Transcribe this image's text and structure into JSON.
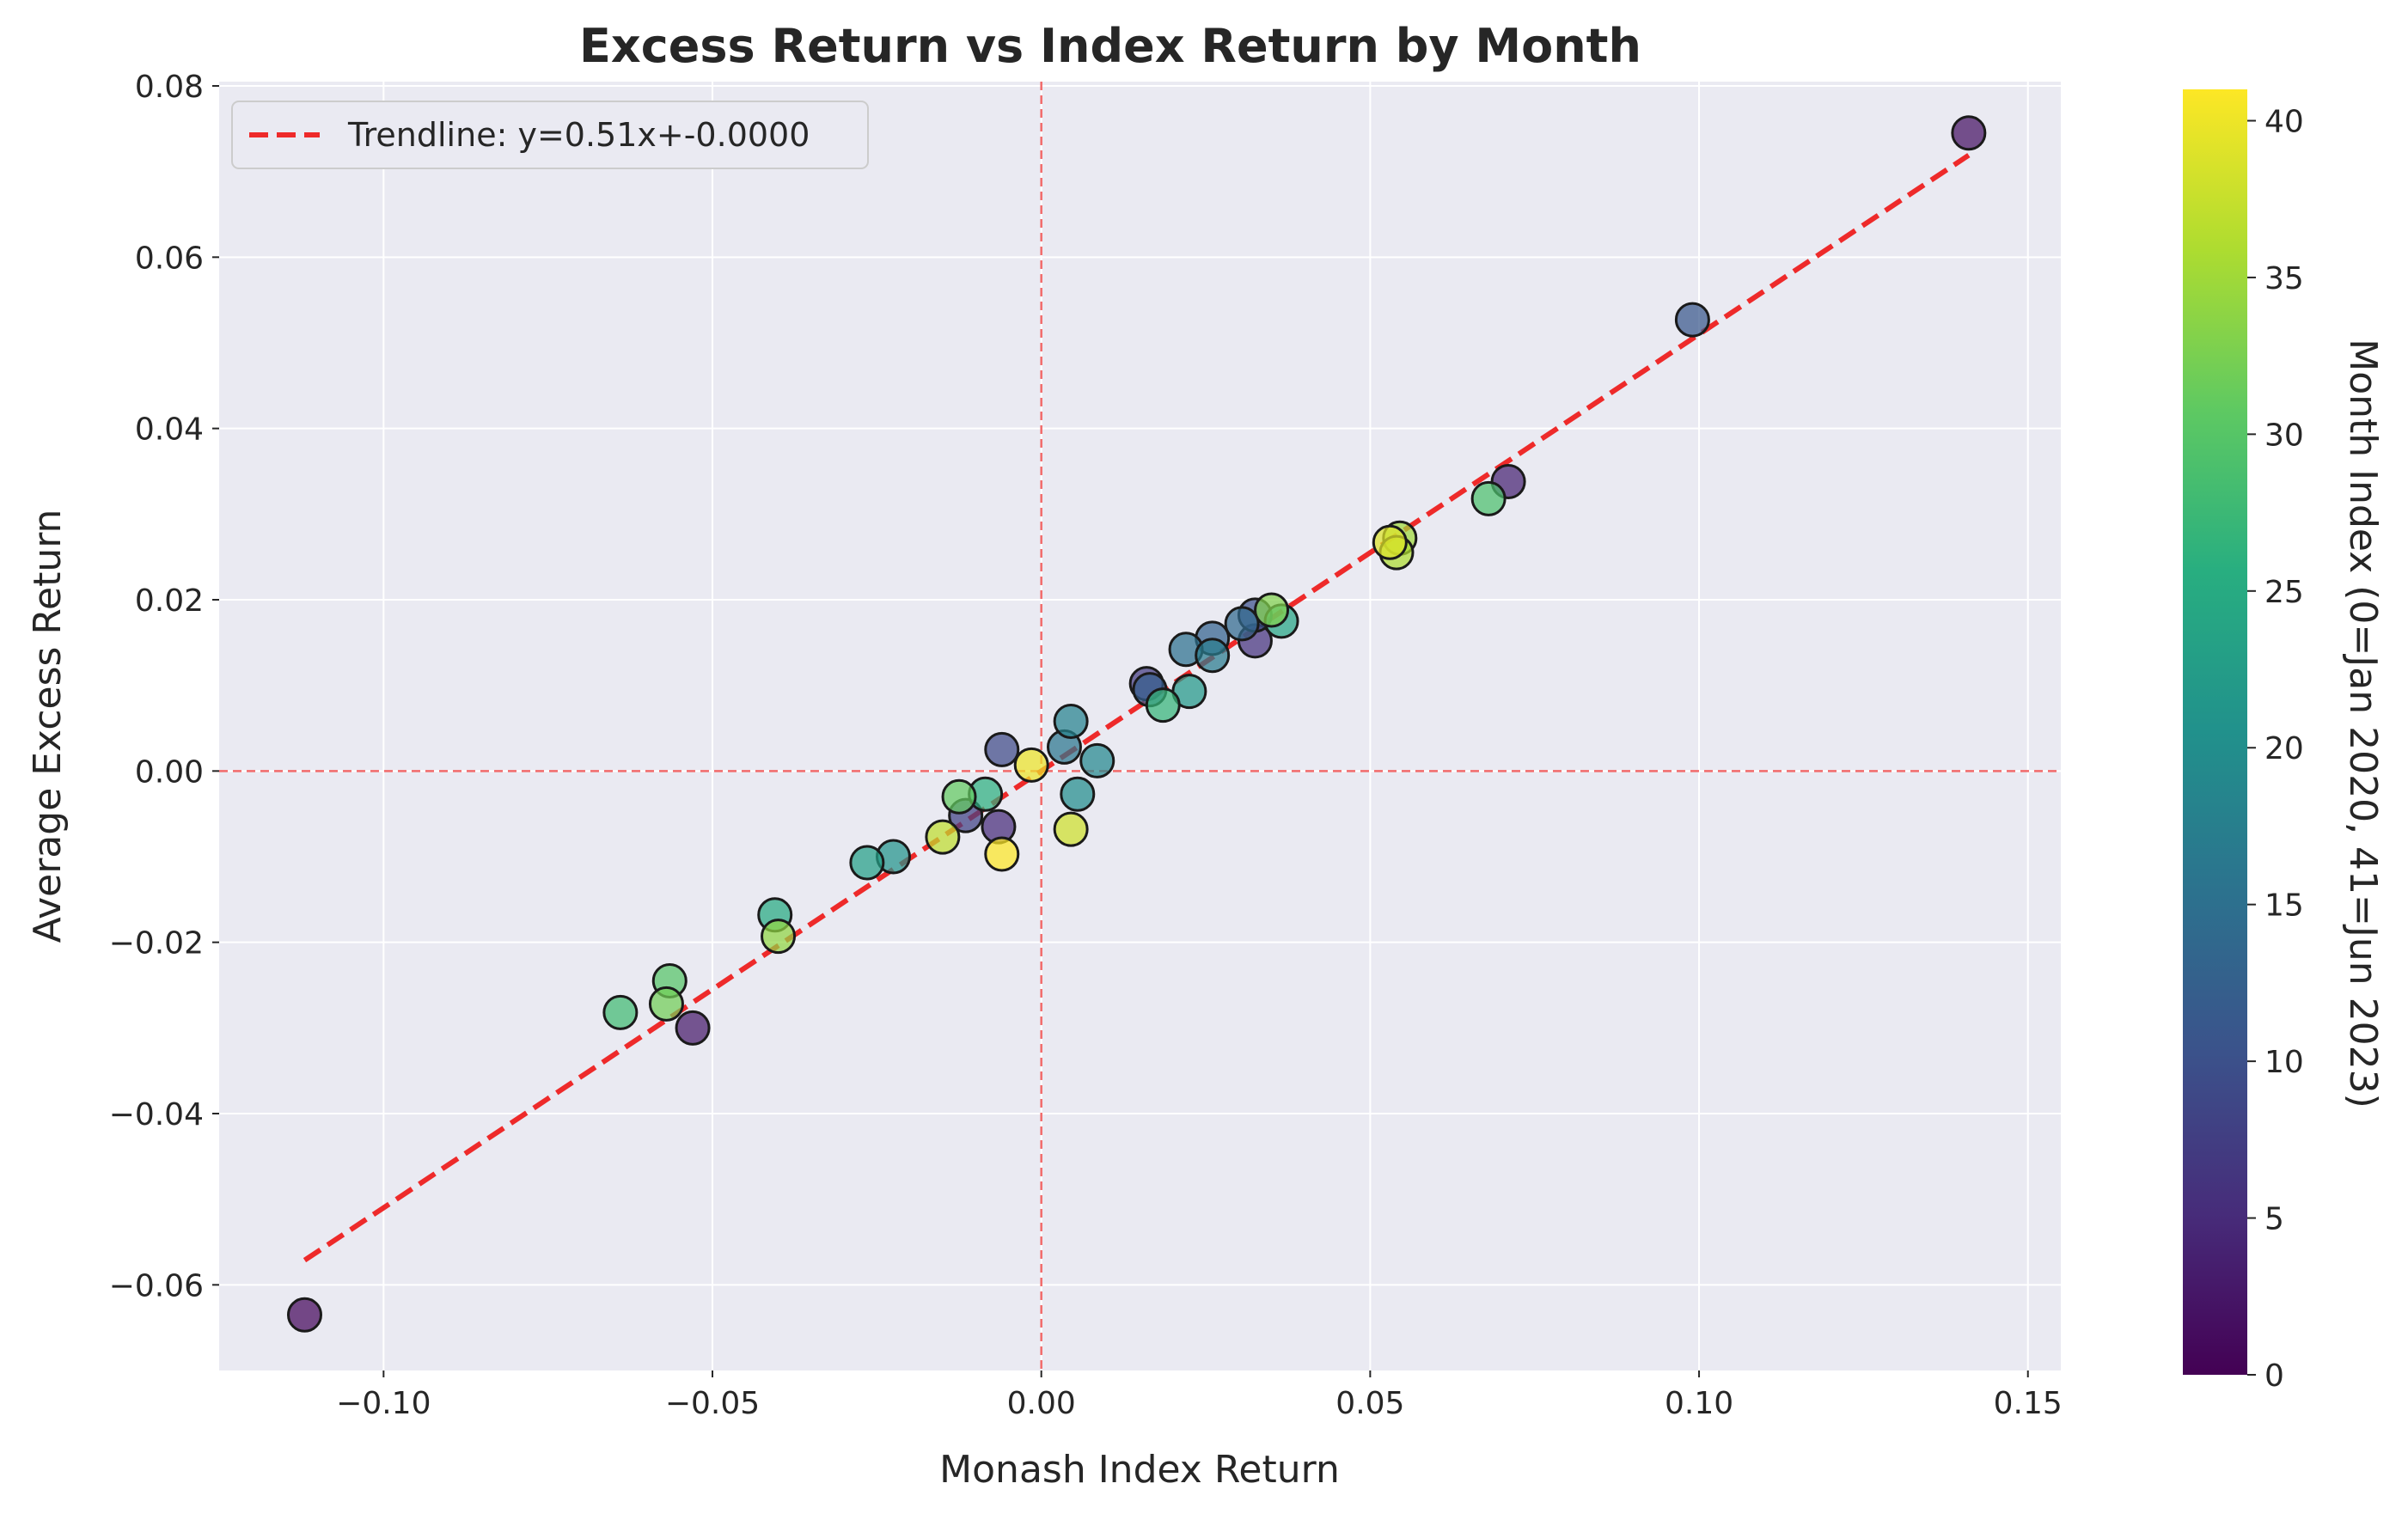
{
  "chart_data": {
    "type": "scatter",
    "title": "Excess Return vs Index Return by Month",
    "xlabel": "Monash Index Return",
    "ylabel": "Average Excess Return",
    "xlim": [
      -0.125,
      0.155
    ],
    "ylim": [
      -0.07,
      0.0805
    ],
    "grid": true,
    "legend_position": "top-left",
    "x_ticks": [
      {
        "value": -0.1,
        "label": "−0.10"
      },
      {
        "value": -0.05,
        "label": "−0.05"
      },
      {
        "value": 0.0,
        "label": "0.00"
      },
      {
        "value": 0.05,
        "label": "0.05"
      },
      {
        "value": 0.1,
        "label": "0.10"
      },
      {
        "value": 0.15,
        "label": "0.15"
      }
    ],
    "y_ticks": [
      {
        "value": -0.06,
        "label": "−0.06"
      },
      {
        "value": -0.04,
        "label": "−0.04"
      },
      {
        "value": -0.02,
        "label": "−0.02"
      },
      {
        "value": 0.0,
        "label": "0.00"
      },
      {
        "value": 0.02,
        "label": "0.02"
      },
      {
        "value": 0.04,
        "label": "0.04"
      },
      {
        "value": 0.06,
        "label": "0.06"
      },
      {
        "value": 0.08,
        "label": "0.08"
      }
    ],
    "reference_lines": {
      "x": 0,
      "y": 0,
      "color": "#f26b6b",
      "style": "dashed"
    },
    "trendline": {
      "label": "Trendline: y=0.51x+-0.0000",
      "slope": 0.51,
      "intercept": 0.0,
      "x_range": [
        -0.112,
        0.141
      ],
      "color": "#ee2a2a",
      "style": "dashed"
    },
    "colorbar": {
      "label": "Month Index (0=Jan 2020, 41=Jun 2023)",
      "range": [
        0,
        41
      ],
      "colormap": "viridis",
      "ticks": [
        {
          "value": 0,
          "label": "0"
        },
        {
          "value": 5,
          "label": "5"
        },
        {
          "value": 10,
          "label": "10"
        },
        {
          "value": 15,
          "label": "15"
        },
        {
          "value": 20,
          "label": "20"
        },
        {
          "value": 25,
          "label": "25"
        },
        {
          "value": 30,
          "label": "30"
        },
        {
          "value": 35,
          "label": "35"
        },
        {
          "value": 40,
          "label": "40"
        }
      ]
    },
    "series": [
      {
        "points": [
          {
            "x": -0.112,
            "y": -0.0635,
            "month": 1
          },
          {
            "x": 0.141,
            "y": 0.0745,
            "month": 2
          },
          {
            "x": -0.053,
            "y": -0.03,
            "month": 3
          },
          {
            "x": 0.071,
            "y": 0.0338,
            "month": 4
          },
          {
            "x": -0.0065,
            "y": -0.0065,
            "month": 5
          },
          {
            "x": 0.0325,
            "y": 0.0152,
            "month": 6
          },
          {
            "x": 0.016,
            "y": 0.0102,
            "month": 7
          },
          {
            "x": -0.0115,
            "y": -0.0052,
            "month": 8
          },
          {
            "x": -0.006,
            "y": 0.0025,
            "month": 9
          },
          {
            "x": 0.0325,
            "y": 0.0182,
            "month": 10
          },
          {
            "x": 0.099,
            "y": 0.0527,
            "month": 11
          },
          {
            "x": 0.0165,
            "y": 0.0095,
            "month": 12
          },
          {
            "x": 0.026,
            "y": 0.0155,
            "month": 13
          },
          {
            "x": 0.0305,
            "y": 0.0172,
            "month": 14
          },
          {
            "x": 0.022,
            "y": 0.0142,
            "month": 15
          },
          {
            "x": 0.0035,
            "y": 0.0028,
            "month": 16
          },
          {
            "x": 0.026,
            "y": 0.0135,
            "month": 17
          },
          {
            "x": 0.0045,
            "y": 0.0058,
            "month": 18
          },
          {
            "x": 0.0085,
            "y": 0.0012,
            "month": 19
          },
          {
            "x": 0.0055,
            "y": -0.0027,
            "month": 20
          },
          {
            "x": -0.0225,
            "y": -0.01,
            "month": 21
          },
          {
            "x": 0.0225,
            "y": 0.0093,
            "month": 22
          },
          {
            "x": -0.0265,
            "y": -0.0107,
            "month": 23
          },
          {
            "x": 0.0365,
            "y": 0.0175,
            "month": 24
          },
          {
            "x": -0.0405,
            "y": -0.0168,
            "month": 25
          },
          {
            "x": -0.0085,
            "y": -0.0027,
            "month": 26
          },
          {
            "x": 0.0185,
            "y": 0.0077,
            "month": 27
          },
          {
            "x": -0.064,
            "y": -0.0282,
            "month": 28
          },
          {
            "x": 0.068,
            "y": 0.0318,
            "month": 29
          },
          {
            "x": -0.0565,
            "y": -0.0245,
            "month": 30
          },
          {
            "x": -0.0125,
            "y": -0.003,
            "month": 31
          },
          {
            "x": -0.057,
            "y": -0.0272,
            "month": 32
          },
          {
            "x": 0.035,
            "y": 0.0188,
            "month": 33
          },
          {
            "x": -0.04,
            "y": -0.0193,
            "month": 34
          },
          {
            "x": 0.0545,
            "y": 0.0272,
            "month": 35
          },
          {
            "x": 0.054,
            "y": 0.0255,
            "month": 36
          },
          {
            "x": -0.015,
            "y": -0.0077,
            "month": 37
          },
          {
            "x": 0.0045,
            "y": -0.0068,
            "month": 38
          },
          {
            "x": 0.053,
            "y": 0.0267,
            "month": 39
          },
          {
            "x": -0.0015,
            "y": 0.0007,
            "month": 40
          },
          {
            "x": -0.006,
            "y": -0.0097,
            "month": 41
          }
        ]
      }
    ]
  }
}
